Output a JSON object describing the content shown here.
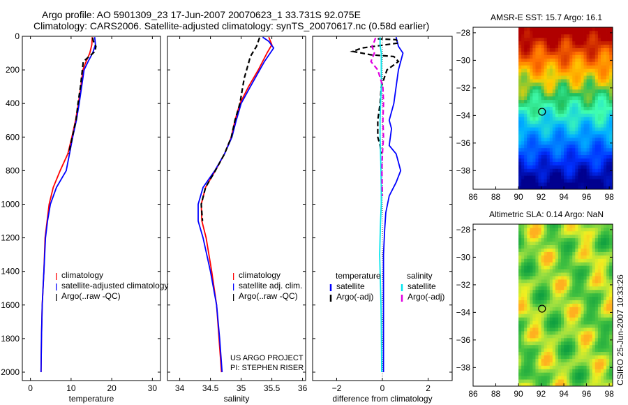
{
  "header": {
    "title_line1": "Argo profile: AO 5901309_23 17-Jun-2007 20070623_1 33.731S 92.075E",
    "title_line2": "Climatology: CARS2006. Satellite-adjusted climatology: synTS_20070617.nc (0.58d earlier)"
  },
  "side_stamp": "CSIRO 25-Jun-2007 10:33:26",
  "project_note": {
    "line1": "US ARGO PROJECT",
    "line2": "PI: STEPHEN RISER"
  },
  "colors": {
    "climatology": "#ff0000",
    "satellite": "#0000ff",
    "argo": "#000000",
    "salinity_satellite": "#00e5ee",
    "salinity_argo_adj": "#e000e0"
  },
  "chart_data": [
    {
      "id": "temperature",
      "type": "line",
      "xlabel": "temperature",
      "ylabel": "",
      "xlim": [
        -2,
        32
      ],
      "ylim": [
        2050,
        0
      ],
      "xticks": [
        0,
        10,
        20,
        30
      ],
      "yticks": [
        0,
        200,
        400,
        600,
        800,
        1000,
        1200,
        1400,
        1600,
        1800,
        2000
      ],
      "legend": {
        "position": "lower-right",
        "entries": [
          "climatology",
          "satellite-adjusted climatology",
          "Argo(..raw -QC)"
        ]
      },
      "series": [
        {
          "name": "climatology",
          "color": "#ff0000",
          "style": "solid",
          "x": [
            15.2,
            15.1,
            14.6,
            13.7,
            12.9,
            12.4,
            11.8,
            11.1,
            10.2,
            9.2,
            7.3,
            5.6,
            4.6,
            4.1,
            3.6,
            3.3,
            2.9,
            2.7,
            2.6
          ],
          "y": [
            5,
            50,
            100,
            150,
            200,
            300,
            400,
            500,
            600,
            700,
            800,
            900,
            1000,
            1100,
            1200,
            1400,
            1600,
            1800,
            2000
          ]
        },
        {
          "name": "satellite-adjusted climatology",
          "color": "#0000ff",
          "style": "solid",
          "x": [
            15.8,
            16.0,
            15.3,
            14.2,
            13.2,
            12.6,
            12.0,
            11.3,
            10.4,
            9.6,
            8.8,
            6.4,
            4.9,
            4.2,
            3.7,
            3.3,
            2.9,
            2.7,
            2.6
          ],
          "y": [
            5,
            50,
            100,
            150,
            200,
            300,
            400,
            500,
            600,
            700,
            800,
            900,
            1000,
            1100,
            1200,
            1400,
            1600,
            1800,
            2000
          ]
        },
        {
          "name": "Argo(..raw -QC)",
          "color": "#000000",
          "style": "dashed",
          "x": [
            15.3,
            15.5,
            16.1,
            15.9,
            13.0,
            12.3,
            11.7,
            11.2,
            10.3,
            9.4
          ],
          "y": [
            8,
            30,
            60,
            90,
            150,
            300,
            400,
            500,
            600,
            700
          ]
        }
      ]
    },
    {
      "id": "salinity",
      "type": "line",
      "xlabel": "salinity",
      "ylabel": "",
      "xlim": [
        33.8,
        36.05
      ],
      "ylim": [
        2050,
        0
      ],
      "xticks": [
        34,
        34.5,
        35,
        35.5,
        36
      ],
      "yticks": [
        0,
        200,
        400,
        600,
        800,
        1000,
        1200,
        1400,
        1600,
        1800,
        2000
      ],
      "legend": {
        "position": "lower-right",
        "entries": [
          "climatology",
          "satellite adj. clim.",
          "Argo(..raw -QC)"
        ]
      },
      "series": [
        {
          "name": "climatology",
          "color": "#ff0000",
          "style": "solid",
          "x": [
            35.45,
            35.5,
            35.42,
            35.28,
            35.12,
            34.98,
            34.9,
            34.84,
            34.73,
            34.58,
            34.42,
            34.35,
            34.36,
            34.43,
            34.52,
            34.6,
            34.64,
            34.68
          ],
          "y": [
            5,
            50,
            100,
            200,
            300,
            400,
            500,
            600,
            700,
            800,
            900,
            1000,
            1100,
            1200,
            1400,
            1600,
            1800,
            2000
          ]
        },
        {
          "name": "satellite adj. clim.",
          "color": "#0000ff",
          "style": "solid",
          "x": [
            35.35,
            35.45,
            35.53,
            35.38,
            35.15,
            35.0,
            34.92,
            34.85,
            34.73,
            34.57,
            34.38,
            34.3,
            34.3,
            34.38,
            34.5,
            34.6,
            34.65,
            34.69
          ],
          "y": [
            5,
            30,
            70,
            150,
            300,
            400,
            500,
            600,
            700,
            800,
            900,
            1000,
            1100,
            1200,
            1400,
            1600,
            1800,
            2000
          ]
        },
        {
          "name": "Argo(..raw -QC)",
          "color": "#000000",
          "style": "dashed",
          "x": [
            35.3,
            35.25,
            35.15,
            35.12,
            35.05,
            34.98,
            34.9,
            34.84,
            34.73,
            34.58,
            34.42,
            34.35,
            34.37
          ],
          "y": [
            8,
            60,
            120,
            160,
            250,
            400,
            500,
            600,
            700,
            800,
            900,
            1000,
            1100
          ]
        }
      ]
    },
    {
      "id": "difference",
      "type": "line",
      "xlabel": "difference from climatology",
      "ylabel": "",
      "xlim": [
        -3.05,
        3.05
      ],
      "ylim": [
        2050,
        0
      ],
      "xticks": [
        -2,
        0,
        2
      ],
      "yticks": [
        0,
        200,
        400,
        600,
        800,
        1000,
        1200,
        1400,
        1600,
        1800,
        2000
      ],
      "legend": {
        "position": "lower-center",
        "temperature_heading": "temperature",
        "salinity_heading": "salinity",
        "entries": [
          "satellite",
          "Argo(-adj)",
          "satellite",
          "Argo(-adj)"
        ]
      },
      "series": [
        {
          "name": "temperature satellite",
          "color": "#0000ff",
          "style": "solid",
          "x": [
            0.6,
            0.7,
            0.9,
            0.7,
            0.6,
            0.5,
            0.3,
            0.4,
            0.3,
            0.6,
            0.7,
            0.8,
            0.6,
            0.3,
            0.15,
            0.1,
            0.05,
            0.05,
            0.05,
            0.05,
            0.05
          ],
          "y": [
            5,
            60,
            100,
            200,
            300,
            400,
            500,
            550,
            650,
            700,
            750,
            800,
            870,
            950,
            1050,
            1150,
            1300,
            1500,
            1700,
            1900,
            2000
          ]
        },
        {
          "name": "temperature Argo(-adj)",
          "color": "#000000",
          "style": "dashed",
          "x": [
            -0.2,
            0.6,
            0.7,
            -0.9,
            -1.3,
            -0.5,
            0.5,
            0.7,
            0.2,
            -0.05,
            -0.1,
            -0.2,
            -0.2,
            -0.1,
            -0.05
          ],
          "y": [
            15,
            20,
            40,
            70,
            90,
            110,
            120,
            150,
            200,
            300,
            400,
            500,
            600,
            650,
            700
          ]
        },
        {
          "name": "salinity satellite",
          "color": "#00e5ee",
          "style": "solid",
          "x": [
            -0.1,
            -0.1,
            -0.05,
            -0.05,
            -0.05,
            -0.08,
            -0.1,
            -0.1,
            -0.08,
            -0.06,
            -0.05,
            -0.05,
            -0.08,
            -0.1,
            -0.12,
            -0.1,
            -0.08,
            -0.06,
            -0.05,
            -0.04,
            -0.03
          ],
          "y": [
            5,
            50,
            100,
            200,
            300,
            400,
            500,
            600,
            700,
            800,
            900,
            1000,
            1100,
            1200,
            1300,
            1400,
            1500,
            1600,
            1700,
            1850,
            2000
          ]
        },
        {
          "name": "salinity Argo(-adj)",
          "color": "#e000e0",
          "style": "dashed",
          "x": [
            -0.3,
            -0.35,
            -0.45,
            -0.35,
            -0.5,
            -0.2,
            0.02,
            0.05,
            0.02,
            0.05,
            0.0,
            -0.02,
            0.0
          ],
          "y": [
            10,
            30,
            60,
            100,
            150,
            200,
            300,
            400,
            500,
            600,
            700,
            800,
            950
          ]
        }
      ]
    },
    {
      "id": "amsr_sst",
      "type": "heatmap",
      "title": "AMSR-E SST: 15.7 Argo: 16.1",
      "xlim": [
        86,
        98.3
      ],
      "ylim": [
        -39.35,
        -27.6
      ],
      "xticks": [
        86,
        88,
        90,
        92,
        94,
        96,
        98
      ],
      "yticks": [
        -28,
        -30,
        -32,
        -34,
        -36,
        -38
      ],
      "data_extent_lon": [
        90,
        98.3
      ],
      "argo_position": {
        "lon": 92.075,
        "lat": -33.731
      },
      "field_note": "SST warm (red) north of about -31, cooling through orange/yellow/green to blue south of about -36",
      "color_stops": [
        [
          0.0,
          "#00008f"
        ],
        [
          0.15,
          "#0030ff"
        ],
        [
          0.35,
          "#00b0ff"
        ],
        [
          0.5,
          "#40ffb0"
        ],
        [
          0.6,
          "#20c060"
        ],
        [
          0.72,
          "#ffd000"
        ],
        [
          0.85,
          "#ff7000"
        ],
        [
          1.0,
          "#b00000"
        ]
      ]
    },
    {
      "id": "altimetric_sla",
      "type": "heatmap",
      "title": "Altimetric SLA: 0.14 Argo: NaN",
      "xlim": [
        86,
        98.3
      ],
      "ylim": [
        -39.35,
        -27.6
      ],
      "xticks": [
        86,
        88,
        90,
        92,
        94,
        96,
        98
      ],
      "yticks": [
        -28,
        -30,
        -32,
        -34,
        -36,
        -38
      ],
      "data_extent_lon": [
        90,
        98.3
      ],
      "argo_position": {
        "lon": 92.075,
        "lat": -33.731
      },
      "field_note": "mottled green and yellow anomalies with a few orange patches",
      "color_stops": [
        [
          0.0,
          "#10a040"
        ],
        [
          0.35,
          "#40c040"
        ],
        [
          0.6,
          "#a0e040"
        ],
        [
          0.8,
          "#f0f020"
        ],
        [
          1.0,
          "#ffb020"
        ]
      ]
    }
  ]
}
